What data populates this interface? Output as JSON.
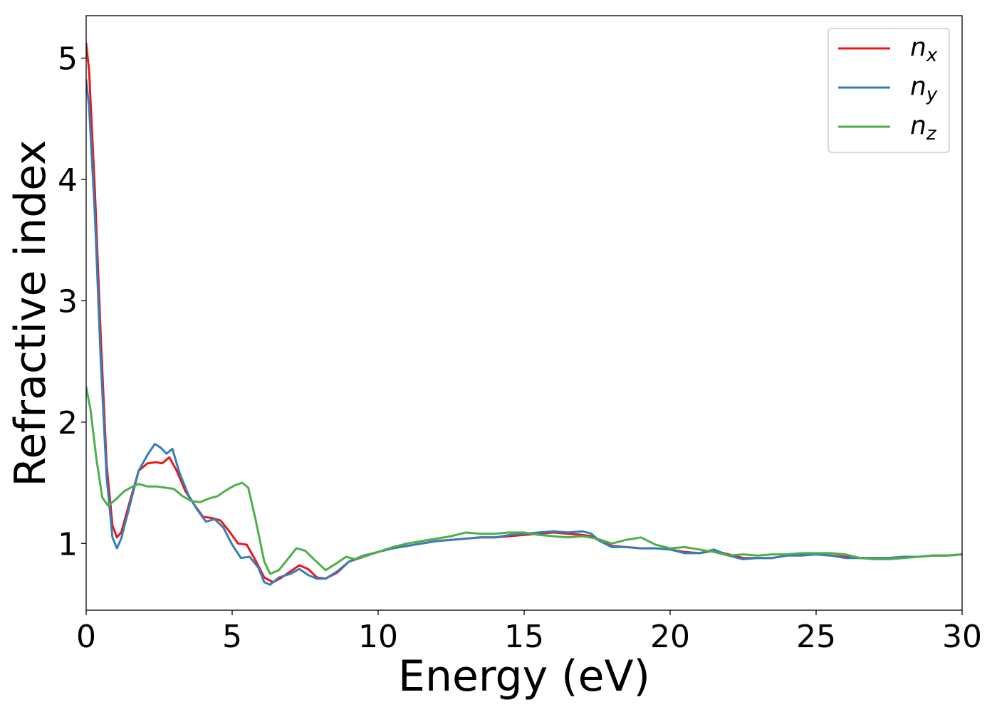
{
  "chart_data": {
    "type": "line",
    "title": "",
    "xlabel": "Energy (eV)",
    "ylabel": "Refractive index",
    "xlim": [
      0,
      30
    ],
    "ylim": [
      0.45,
      5.35
    ],
    "xticks": [
      0,
      5,
      10,
      15,
      20,
      25,
      30
    ],
    "xtick_labels": [
      "0",
      "5",
      "10",
      "15",
      "20",
      "25",
      "30"
    ],
    "yticks": [
      1,
      2,
      3,
      4,
      5
    ],
    "ytick_labels": [
      "1",
      "2",
      "3",
      "4",
      "5"
    ],
    "grid": false,
    "legend_position": "top-right",
    "series": [
      {
        "name": "n",
        "subscript": "x",
        "color": "#e41a1c",
        "points": [
          [
            0,
            5.12
          ],
          [
            0.1,
            4.9
          ],
          [
            0.3,
            3.9
          ],
          [
            0.5,
            2.7
          ],
          [
            0.7,
            1.65
          ],
          [
            0.9,
            1.15
          ],
          [
            1.05,
            1.05
          ],
          [
            1.2,
            1.09
          ],
          [
            1.5,
            1.35
          ],
          [
            1.8,
            1.6
          ],
          [
            2.1,
            1.66
          ],
          [
            2.4,
            1.67
          ],
          [
            2.6,
            1.66
          ],
          [
            2.85,
            1.71
          ],
          [
            3.1,
            1.6
          ],
          [
            3.4,
            1.43
          ],
          [
            3.7,
            1.32
          ],
          [
            4.0,
            1.22
          ],
          [
            4.3,
            1.21
          ],
          [
            4.6,
            1.19
          ],
          [
            4.9,
            1.1
          ],
          [
            5.2,
            1.0
          ],
          [
            5.5,
            0.99
          ],
          [
            5.8,
            0.86
          ],
          [
            6.1,
            0.72
          ],
          [
            6.4,
            0.68
          ],
          [
            6.7,
            0.72
          ],
          [
            7.0,
            0.77
          ],
          [
            7.3,
            0.82
          ],
          [
            7.6,
            0.79
          ],
          [
            7.9,
            0.72
          ],
          [
            8.2,
            0.71
          ],
          [
            8.6,
            0.76
          ],
          [
            9.0,
            0.85
          ],
          [
            9.5,
            0.89
          ],
          [
            10.0,
            0.93
          ],
          [
            10.5,
            0.96
          ],
          [
            11.0,
            0.98
          ],
          [
            11.5,
            1.0
          ],
          [
            12.0,
            1.02
          ],
          [
            12.5,
            1.03
          ],
          [
            13.0,
            1.04
          ],
          [
            13.5,
            1.05
          ],
          [
            14.0,
            1.05
          ],
          [
            14.5,
            1.06
          ],
          [
            15.0,
            1.07
          ],
          [
            15.5,
            1.08
          ],
          [
            16.0,
            1.09
          ],
          [
            16.5,
            1.08
          ],
          [
            17.0,
            1.07
          ],
          [
            17.3,
            1.06
          ],
          [
            17.6,
            1.02
          ],
          [
            18.0,
            0.98
          ],
          [
            18.5,
            0.97
          ],
          [
            19.0,
            0.96
          ],
          [
            19.5,
            0.96
          ],
          [
            20.0,
            0.95
          ],
          [
            20.5,
            0.93
          ],
          [
            21.0,
            0.92
          ],
          [
            21.5,
            0.94
          ],
          [
            22.0,
            0.91
          ],
          [
            22.5,
            0.88
          ],
          [
            23.0,
            0.88
          ],
          [
            23.5,
            0.88
          ],
          [
            24.0,
            0.9
          ],
          [
            24.5,
            0.91
          ],
          [
            25.0,
            0.91
          ],
          [
            25.5,
            0.9
          ],
          [
            26.0,
            0.89
          ],
          [
            26.5,
            0.88
          ],
          [
            27.0,
            0.88
          ],
          [
            27.5,
            0.88
          ],
          [
            28.0,
            0.89
          ],
          [
            28.5,
            0.89
          ],
          [
            29.0,
            0.9
          ],
          [
            29.5,
            0.9
          ],
          [
            30.0,
            0.91
          ]
        ]
      },
      {
        "name": "n",
        "subscript": "y",
        "color": "#377eb8",
        "points": [
          [
            0,
            4.82
          ],
          [
            0.1,
            4.6
          ],
          [
            0.3,
            3.7
          ],
          [
            0.5,
            2.5
          ],
          [
            0.7,
            1.55
          ],
          [
            0.9,
            1.05
          ],
          [
            1.05,
            0.96
          ],
          [
            1.2,
            1.04
          ],
          [
            1.5,
            1.32
          ],
          [
            1.8,
            1.6
          ],
          [
            2.1,
            1.73
          ],
          [
            2.35,
            1.82
          ],
          [
            2.55,
            1.79
          ],
          [
            2.75,
            1.74
          ],
          [
            2.95,
            1.78
          ],
          [
            3.2,
            1.58
          ],
          [
            3.5,
            1.4
          ],
          [
            3.8,
            1.28
          ],
          [
            4.1,
            1.18
          ],
          [
            4.4,
            1.2
          ],
          [
            4.7,
            1.13
          ],
          [
            5.0,
            0.99
          ],
          [
            5.3,
            0.88
          ],
          [
            5.6,
            0.89
          ],
          [
            5.9,
            0.8
          ],
          [
            6.1,
            0.68
          ],
          [
            6.3,
            0.66
          ],
          [
            6.6,
            0.72
          ],
          [
            7.0,
            0.75
          ],
          [
            7.3,
            0.79
          ],
          [
            7.6,
            0.74
          ],
          [
            7.9,
            0.71
          ],
          [
            8.2,
            0.71
          ],
          [
            8.6,
            0.77
          ],
          [
            9.0,
            0.85
          ],
          [
            9.5,
            0.9
          ],
          [
            10.0,
            0.93
          ],
          [
            10.5,
            0.96
          ],
          [
            11.0,
            0.98
          ],
          [
            11.5,
            1.0
          ],
          [
            12.0,
            1.02
          ],
          [
            12.5,
            1.03
          ],
          [
            13.0,
            1.04
          ],
          [
            13.5,
            1.05
          ],
          [
            14.0,
            1.05
          ],
          [
            14.5,
            1.07
          ],
          [
            15.0,
            1.08
          ],
          [
            15.5,
            1.09
          ],
          [
            16.0,
            1.1
          ],
          [
            16.5,
            1.09
          ],
          [
            17.0,
            1.1
          ],
          [
            17.3,
            1.08
          ],
          [
            17.6,
            1.02
          ],
          [
            18.0,
            0.97
          ],
          [
            18.5,
            0.97
          ],
          [
            19.0,
            0.96
          ],
          [
            19.5,
            0.96
          ],
          [
            20.0,
            0.95
          ],
          [
            20.5,
            0.92
          ],
          [
            21.0,
            0.92
          ],
          [
            21.5,
            0.95
          ],
          [
            22.0,
            0.9
          ],
          [
            22.5,
            0.87
          ],
          [
            23.0,
            0.88
          ],
          [
            23.5,
            0.88
          ],
          [
            24.0,
            0.9
          ],
          [
            24.5,
            0.9
          ],
          [
            25.0,
            0.91
          ],
          [
            25.5,
            0.9
          ],
          [
            26.0,
            0.88
          ],
          [
            26.5,
            0.88
          ],
          [
            27.0,
            0.88
          ],
          [
            27.5,
            0.88
          ],
          [
            28.0,
            0.89
          ],
          [
            28.5,
            0.89
          ],
          [
            29.0,
            0.9
          ],
          [
            29.5,
            0.9
          ],
          [
            30.0,
            0.91
          ]
        ]
      },
      {
        "name": "n",
        "subscript": "z",
        "color": "#4daf4a",
        "points": [
          [
            0,
            2.29
          ],
          [
            0.15,
            2.1
          ],
          [
            0.35,
            1.7
          ],
          [
            0.55,
            1.38
          ],
          [
            0.75,
            1.31
          ],
          [
            1.0,
            1.36
          ],
          [
            1.3,
            1.43
          ],
          [
            1.6,
            1.47
          ],
          [
            1.8,
            1.49
          ],
          [
            2.1,
            1.47
          ],
          [
            2.4,
            1.47
          ],
          [
            2.7,
            1.46
          ],
          [
            3.0,
            1.45
          ],
          [
            3.3,
            1.39
          ],
          [
            3.6,
            1.35
          ],
          [
            3.9,
            1.34
          ],
          [
            4.2,
            1.37
          ],
          [
            4.5,
            1.39
          ],
          [
            4.8,
            1.44
          ],
          [
            5.1,
            1.48
          ],
          [
            5.35,
            1.5
          ],
          [
            5.55,
            1.46
          ],
          [
            5.8,
            1.2
          ],
          [
            6.1,
            0.85
          ],
          [
            6.3,
            0.75
          ],
          [
            6.6,
            0.78
          ],
          [
            6.9,
            0.87
          ],
          [
            7.2,
            0.96
          ],
          [
            7.5,
            0.94
          ],
          [
            7.8,
            0.87
          ],
          [
            8.2,
            0.78
          ],
          [
            8.6,
            0.84
          ],
          [
            8.9,
            0.89
          ],
          [
            9.2,
            0.87
          ],
          [
            9.6,
            0.9
          ],
          [
            10.0,
            0.93
          ],
          [
            10.5,
            0.97
          ],
          [
            11.0,
            1.0
          ],
          [
            11.5,
            1.02
          ],
          [
            12.0,
            1.04
          ],
          [
            12.5,
            1.06
          ],
          [
            13.0,
            1.09
          ],
          [
            13.5,
            1.08
          ],
          [
            14.0,
            1.08
          ],
          [
            14.5,
            1.09
          ],
          [
            15.0,
            1.09
          ],
          [
            15.5,
            1.07
          ],
          [
            16.0,
            1.06
          ],
          [
            16.5,
            1.05
          ],
          [
            17.0,
            1.06
          ],
          [
            17.5,
            1.04
          ],
          [
            18.0,
            1.0
          ],
          [
            18.5,
            1.03
          ],
          [
            19.0,
            1.05
          ],
          [
            19.5,
            0.99
          ],
          [
            20.0,
            0.96
          ],
          [
            20.5,
            0.97
          ],
          [
            21.0,
            0.95
          ],
          [
            21.5,
            0.93
          ],
          [
            22.0,
            0.9
          ],
          [
            22.5,
            0.91
          ],
          [
            23.0,
            0.9
          ],
          [
            23.5,
            0.91
          ],
          [
            24.0,
            0.91
          ],
          [
            24.5,
            0.92
          ],
          [
            25.0,
            0.92
          ],
          [
            25.5,
            0.92
          ],
          [
            26.0,
            0.91
          ],
          [
            26.5,
            0.88
          ],
          [
            27.0,
            0.87
          ],
          [
            27.5,
            0.87
          ],
          [
            28.0,
            0.88
          ],
          [
            28.5,
            0.89
          ],
          [
            29.0,
            0.9
          ],
          [
            29.5,
            0.9
          ],
          [
            30.0,
            0.91
          ]
        ]
      }
    ]
  }
}
